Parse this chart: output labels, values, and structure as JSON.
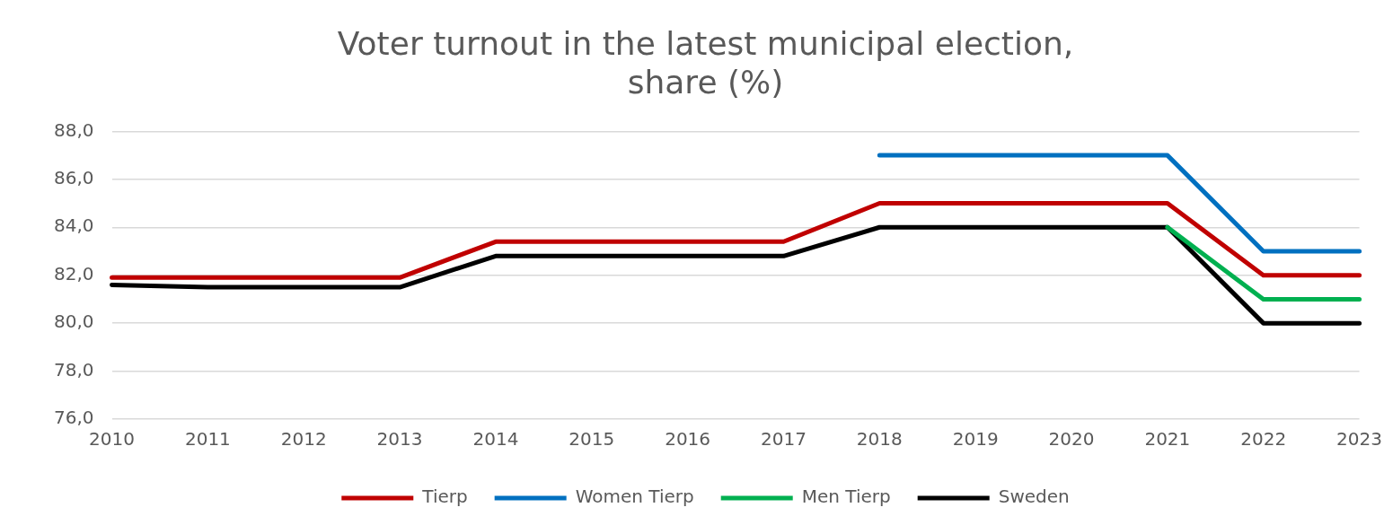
{
  "chart_data": {
    "type": "line",
    "title": "Voter turnout in the latest municipal election,\nshare (%)",
    "categories": [
      "2010",
      "2011",
      "2012",
      "2013",
      "2014",
      "2015",
      "2016",
      "2017",
      "2018",
      "2019",
      "2020",
      "2021",
      "2022",
      "2023"
    ],
    "series": [
      {
        "name": "Tierp",
        "color": "#c00000",
        "values": [
          81.9,
          81.9,
          81.9,
          81.9,
          83.4,
          83.4,
          83.4,
          83.4,
          85.0,
          85.0,
          85.0,
          85.0,
          82.0,
          82.0
        ]
      },
      {
        "name": "Women Tierp",
        "color": "#0070c0",
        "values": [
          null,
          null,
          null,
          null,
          null,
          null,
          null,
          null,
          87.0,
          87.0,
          87.0,
          87.0,
          83.0,
          83.0
        ]
      },
      {
        "name": "Men Tierp",
        "color": "#00b050",
        "values": [
          null,
          null,
          null,
          null,
          null,
          null,
          null,
          null,
          null,
          null,
          null,
          84.0,
          81.0,
          81.0
        ]
      },
      {
        "name": "Sweden",
        "color": "#000000",
        "values": [
          81.6,
          81.5,
          81.5,
          81.5,
          82.8,
          82.8,
          82.8,
          82.8,
          84.0,
          84.0,
          84.0,
          84.0,
          80.0,
          80.0
        ]
      }
    ],
    "ylim": [
      76,
      88
    ],
    "yticks": [
      {
        "value": 76,
        "label": "76,0"
      },
      {
        "value": 78,
        "label": "78,0"
      },
      {
        "value": 80,
        "label": "80,0"
      },
      {
        "value": 82,
        "label": "82,0"
      },
      {
        "value": 84,
        "label": "84,0"
      },
      {
        "value": 86,
        "label": "86,0"
      },
      {
        "value": 88,
        "label": "88,0"
      }
    ],
    "grid": "y",
    "legend": "bottom",
    "marker": "none",
    "line_style": "solid"
  }
}
